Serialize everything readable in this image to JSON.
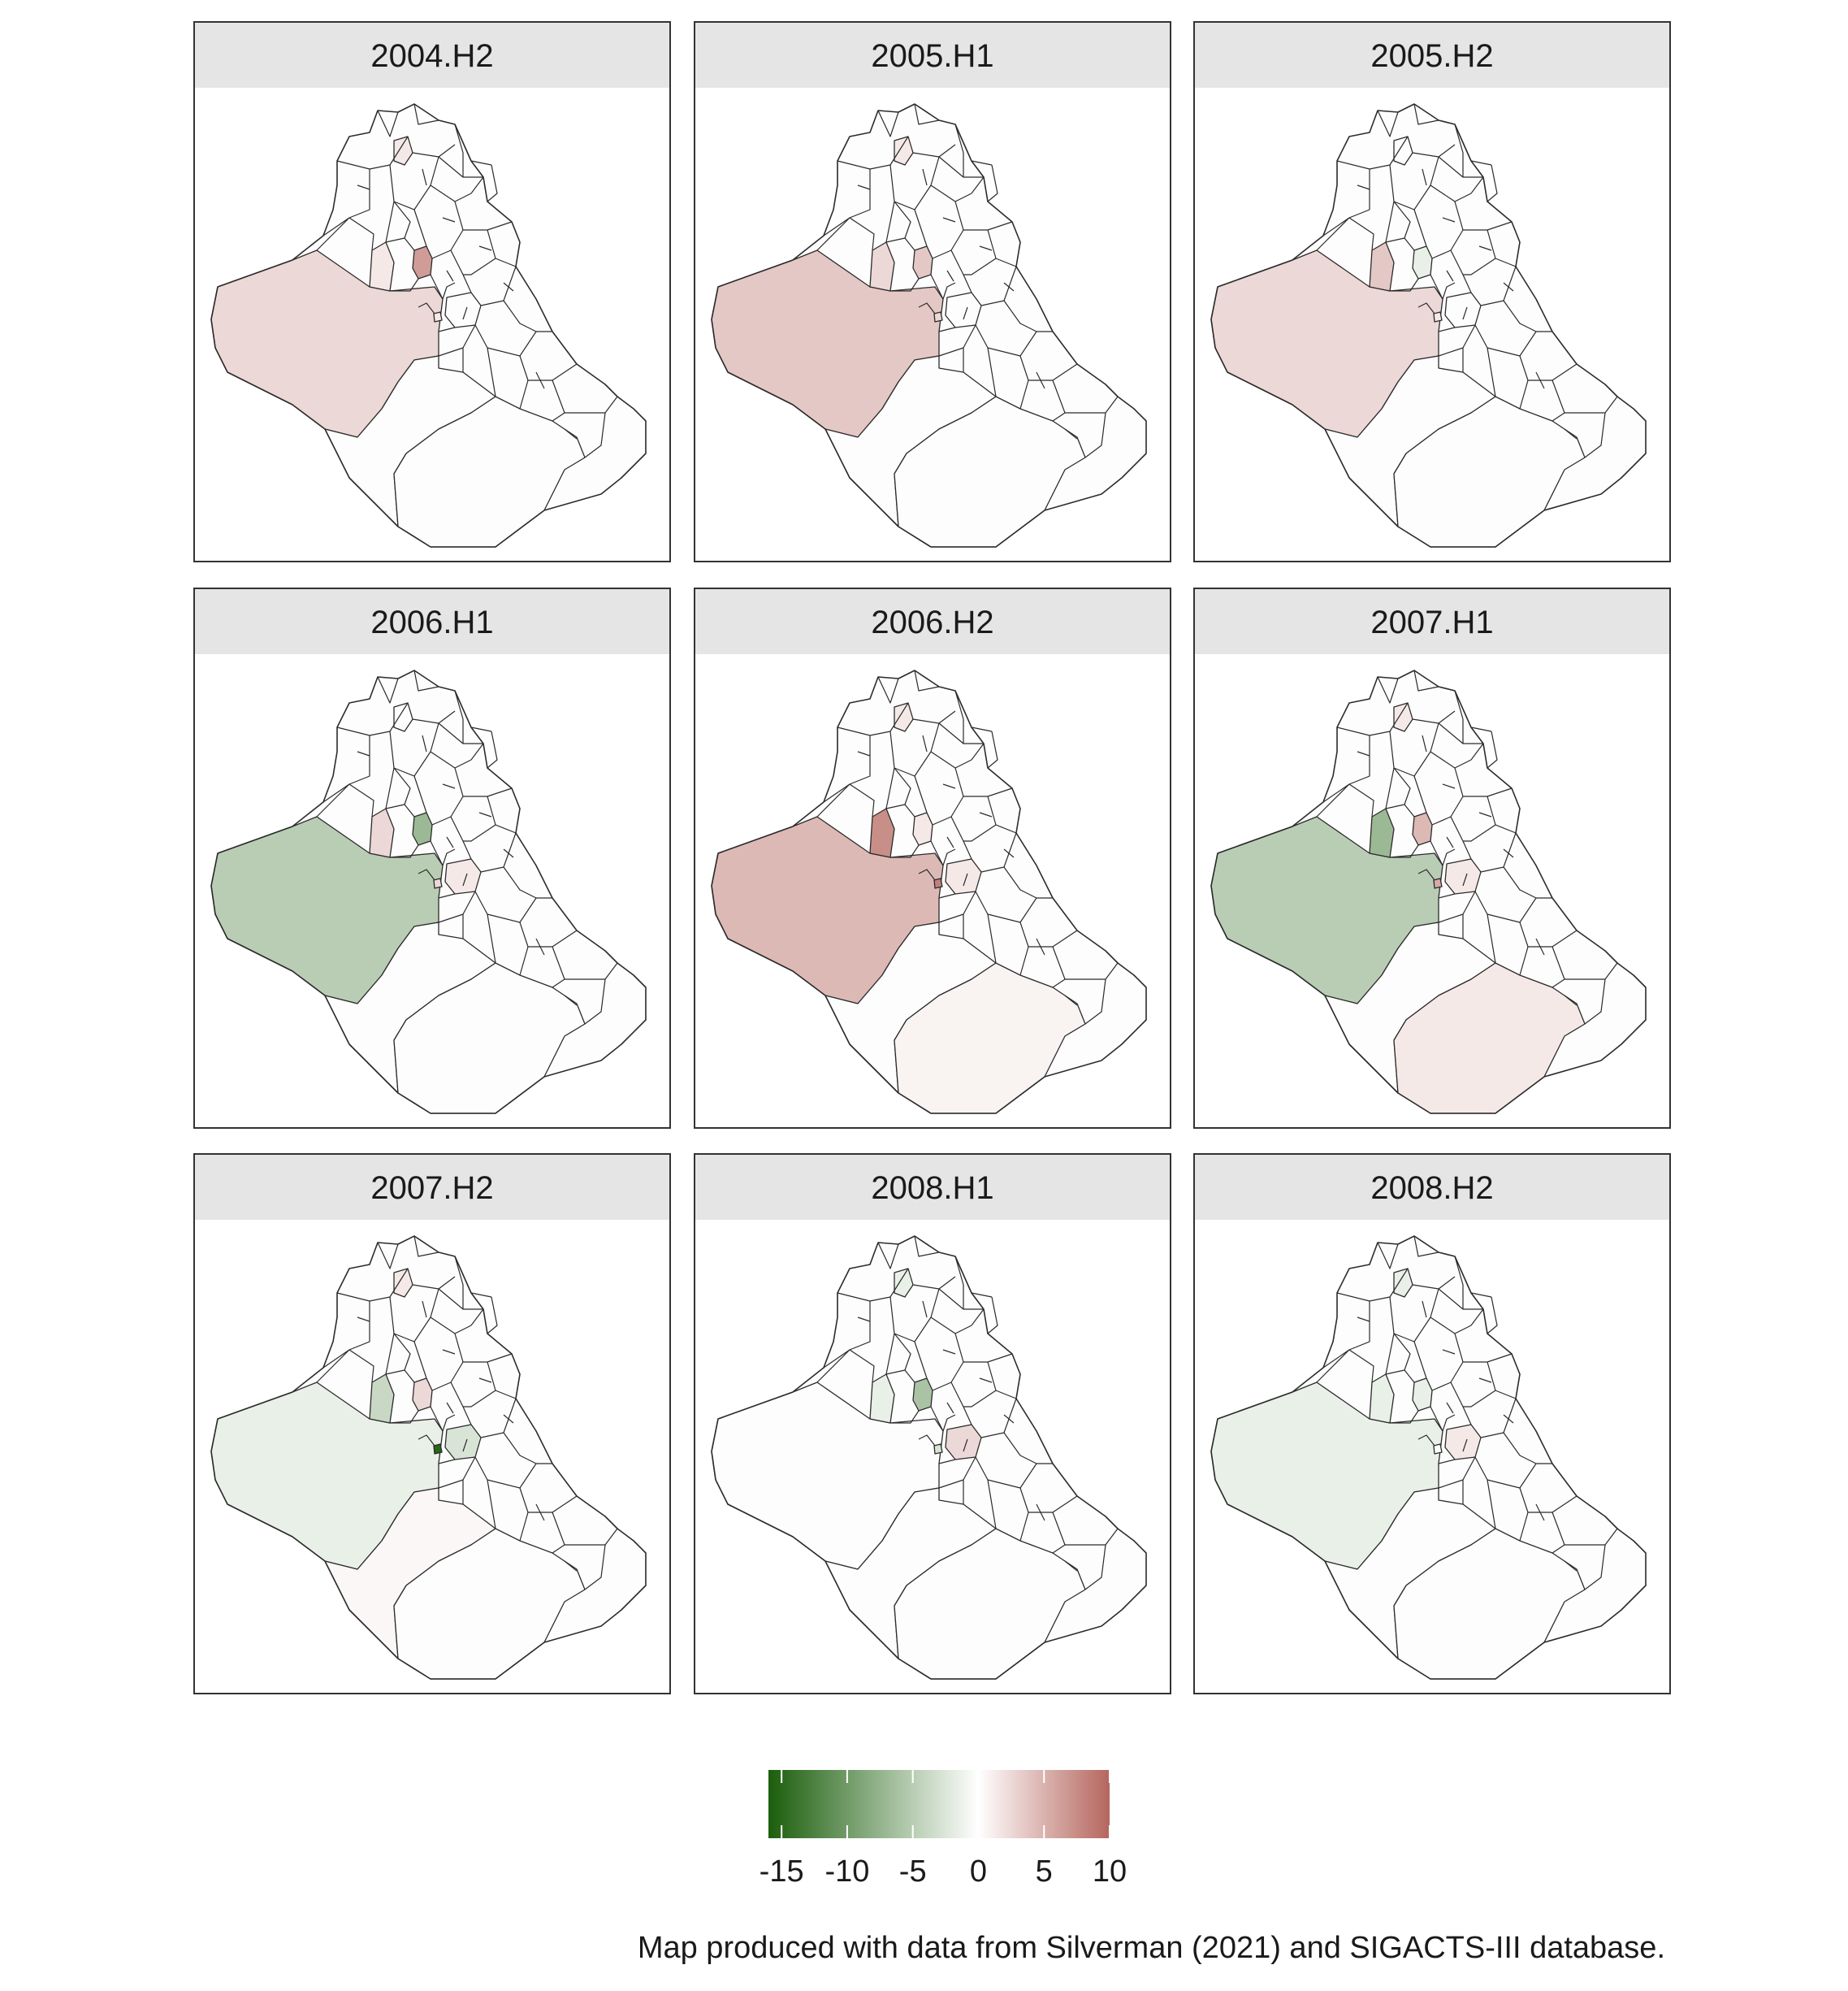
{
  "panels": [
    {
      "title": "2004.H2",
      "fills": {
        "west": 2,
        "center": 6,
        "north": 1,
        "tiny": 1,
        "south": 0,
        "southeast": 0,
        "midwest": 1,
        "east": 0
      }
    },
    {
      "title": "2005.H1",
      "fills": {
        "west": 3,
        "center": 3,
        "north": 1,
        "tiny": 2,
        "south": 0,
        "southeast": 0,
        "midwest": 2,
        "east": 0
      }
    },
    {
      "title": "2005.H2",
      "fills": {
        "west": 2,
        "center": -1,
        "north": 0,
        "tiny": 1,
        "south": 0,
        "southeast": 0,
        "midwest": 3,
        "east": 0
      }
    },
    {
      "title": "2006.H1",
      "fills": {
        "west": -4,
        "center": -6,
        "north": 0,
        "tiny": 2,
        "south": 0,
        "southeast": 0,
        "midwest": 2,
        "east": 1
      }
    },
    {
      "title": "2006.H2",
      "fills": {
        "west": 4,
        "center": 1,
        "north": 1,
        "tiny": 8,
        "south": 0,
        "southeast": 0.5,
        "midwest": 7,
        "east": 1
      }
    },
    {
      "title": "2007.H1",
      "fills": {
        "west": -4,
        "center": 4,
        "north": 1,
        "tiny": 5,
        "south": 0,
        "southeast": 1,
        "midwest": -6,
        "east": 1
      }
    },
    {
      "title": "2007.H2",
      "fills": {
        "west": -1,
        "center": 2,
        "north": 1,
        "tiny": -15,
        "south": 0.3,
        "southeast": 0,
        "midwest": -3,
        "east": -2
      }
    },
    {
      "title": "2008.H1",
      "fills": {
        "west": 0,
        "center": -5,
        "north": -1,
        "tiny": -2,
        "south": 0,
        "southeast": 0,
        "midwest": -1,
        "east": 2
      }
    },
    {
      "title": "2008.H2",
      "fills": {
        "west": -1,
        "center": -1,
        "north": -1,
        "tiny": 0,
        "south": 0,
        "southeast": 0,
        "midwest": -1,
        "east": 1
      }
    }
  ],
  "legend": {
    "min": -16,
    "max": 10,
    "ticks": [
      {
        "value": -15,
        "label": "-15"
      },
      {
        "value": -10,
        "label": "-10"
      },
      {
        "value": -5,
        "label": "-5"
      },
      {
        "value": 0,
        "label": "0"
      },
      {
        "value": 5,
        "label": "5"
      },
      {
        "value": 10,
        "label": "10"
      }
    ],
    "colors": {
      "low": "#1b5e0c",
      "mid": "#ffffff",
      "high": "#b5665e"
    }
  },
  "caption": "Map produced with data from Silverman (2021) and SIGACTS-III database."
}
